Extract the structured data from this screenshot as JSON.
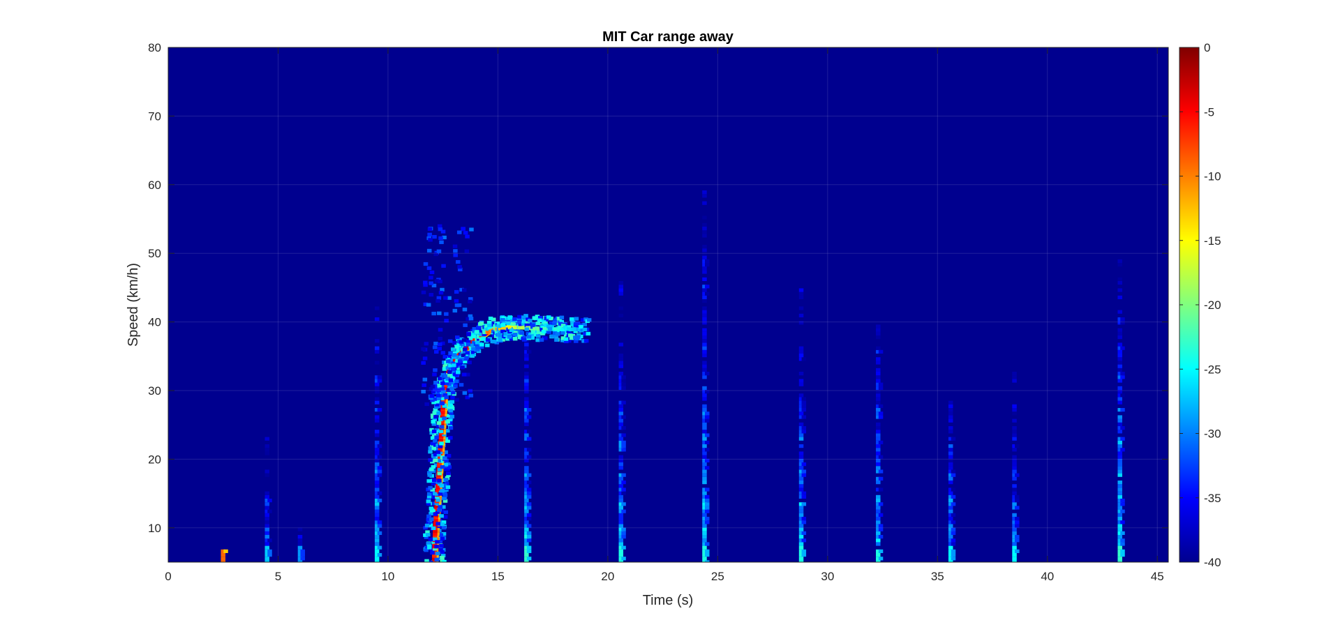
{
  "chart_data": {
    "type": "heatmap",
    "title": "MIT Car range away",
    "xlabel": "Time (s)",
    "ylabel": "Speed (km/h)",
    "xlim": [
      0,
      45.5
    ],
    "ylim": [
      5,
      80
    ],
    "xticks": [
      0,
      5,
      10,
      15,
      20,
      25,
      30,
      35,
      40,
      45
    ],
    "yticks": [
      10,
      20,
      30,
      40,
      50,
      60,
      70,
      80
    ],
    "grid": true,
    "colormap": "jet",
    "colorbar": {
      "limits": [
        -40,
        0
      ],
      "ticks": [
        0,
        -5,
        -10,
        -15,
        -20,
        -25,
        -30,
        -35,
        -40
      ]
    },
    "background_level_db": -40,
    "main_track": [
      {
        "t": 12.1,
        "v": 5
      },
      {
        "t": 12.15,
        "v": 10
      },
      {
        "t": 12.25,
        "v": 15
      },
      {
        "t": 12.35,
        "v": 20
      },
      {
        "t": 12.45,
        "v": 25
      },
      {
        "t": 12.55,
        "v": 30
      },
      {
        "t": 12.8,
        "v": 33
      },
      {
        "t": 13.2,
        "v": 35
      },
      {
        "t": 13.8,
        "v": 37
      },
      {
        "t": 14.5,
        "v": 38.5
      },
      {
        "t": 15.3,
        "v": 39.2
      },
      {
        "t": 16.0,
        "v": 39.2
      },
      {
        "t": 17.0,
        "v": 39.0
      },
      {
        "t": 18.0,
        "v": 38.9
      },
      {
        "t": 19.0,
        "v": 38.9
      }
    ],
    "vertical_streaks": [
      {
        "t": 2.5,
        "vmax": 7,
        "db": -12
      },
      {
        "t": 4.5,
        "vmax": 26,
        "db": -30
      },
      {
        "t": 6.0,
        "vmax": 15,
        "db": -32
      },
      {
        "t": 9.5,
        "vmax": 45,
        "db": -28
      },
      {
        "t": 16.3,
        "vmax": 42,
        "db": -26
      },
      {
        "t": 20.6,
        "vmax": 46,
        "db": -27
      },
      {
        "t": 24.4,
        "vmax": 62,
        "db": -27
      },
      {
        "t": 28.8,
        "vmax": 45,
        "db": -27
      },
      {
        "t": 32.3,
        "vmax": 44,
        "db": -27
      },
      {
        "t": 35.6,
        "vmax": 36,
        "db": -28
      },
      {
        "t": 38.5,
        "vmax": 33,
        "db": -28
      },
      {
        "t": 43.3,
        "vmax": 49,
        "db": -26
      }
    ]
  }
}
